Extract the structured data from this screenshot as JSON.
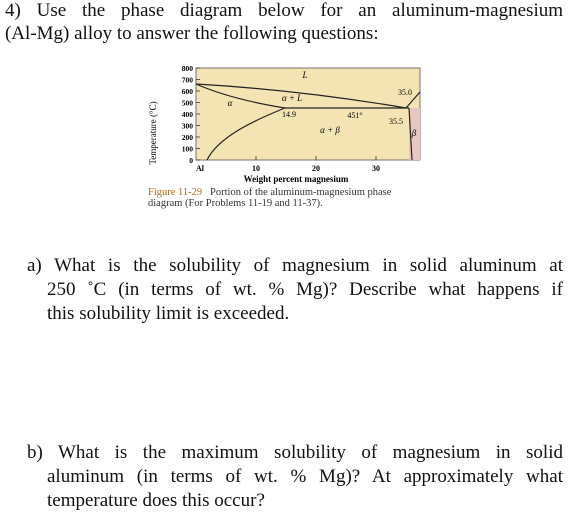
{
  "question": {
    "lines": [
      "4)  Use the phase diagram below for an aluminum-magnesium",
      "(Al-Mg) alloy to answer the following questions:"
    ]
  },
  "figure": {
    "y_axis_label": "Temperature (°C)",
    "x_axis_label": "Weight percent magnesium",
    "y_tick_labels": [
      "800",
      "700",
      "600",
      "500",
      "400",
      "300",
      "200",
      "100",
      "0"
    ],
    "x_tick_labels": [
      "Al",
      "10",
      "20",
      "30"
    ],
    "region_labels": [
      "L",
      "α + L",
      "α",
      "α + β",
      "β"
    ],
    "point_labels": [
      "14.9",
      "451°",
      "35.5",
      "35.0"
    ],
    "caption": {
      "number": "Figure 11-29",
      "text": "Portion of the aluminum-magnesium phase diagram (For Problems 11-19 and 11-37)."
    }
  },
  "part_a": {
    "lines": [
      "a) What is the solubility of magnesium in solid aluminum at",
      "250 ˚C (in terms of wt. % Mg)?  Describe what happens if",
      "this solubility limit is exceeded."
    ]
  },
  "part_b": {
    "lines": [
      "b) What is the maximum solubility of magnesium in solid",
      "aluminum (in terms of wt. % Mg)?  At approximately what",
      "temperature does this occur?"
    ]
  }
}
